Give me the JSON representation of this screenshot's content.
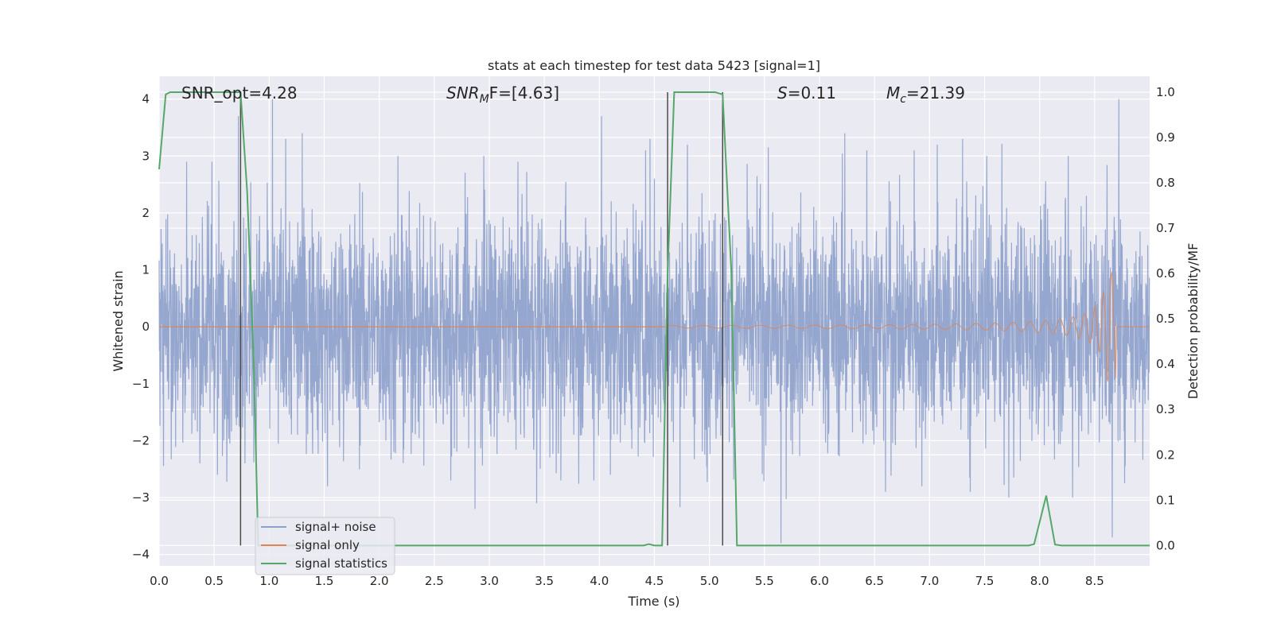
{
  "chart_data": {
    "type": "line",
    "title": "stats at each timestep for test data 5423 [signal=1]",
    "xlabel": "Time (s)",
    "ylabel_left": "Whitened strain",
    "ylabel_right": "Detection probability/MF",
    "xlim": [
      0.0,
      9.0
    ],
    "ylim_left": [
      -4.2,
      4.4
    ],
    "ylim_right": [
      -0.045,
      1.035
    ],
    "x_ticks": [
      "0.0",
      "0.5",
      "1.0",
      "1.5",
      "2.0",
      "2.5",
      "3.0",
      "3.5",
      "4.0",
      "4.5",
      "5.0",
      "5.5",
      "6.0",
      "6.5",
      "7.0",
      "7.5",
      "8.0",
      "8.5"
    ],
    "y_left_ticks": [
      "4",
      "3",
      "2",
      "1",
      "0",
      "−1",
      "−2",
      "−3",
      "−4"
    ],
    "y_right_ticks": [
      "1.0",
      "0.9",
      "0.8",
      "0.7",
      "0.6",
      "0.5",
      "0.4",
      "0.3",
      "0.2",
      "0.1",
      "0.0"
    ],
    "grid": true,
    "legend_location": "lower-left",
    "annotations": {
      "snr_opt": "SNR_opt=4.28",
      "snr_mf_prefix": "SNR",
      "snr_mf_sub": "M",
      "snr_mf_suffix": "F=[4.63]",
      "s_var": "S",
      "s_val": "=0.11",
      "mc_var": "M",
      "mc_sub": "c",
      "mc_val": "=21.39"
    },
    "colors": {
      "signal_noise": "#8da0cb",
      "signal_only": "#dd8452",
      "signal_statistics": "#55a868",
      "vlines": "#4c4c4c",
      "axes_bg": "#eaeaf2",
      "grid": "#ffffff"
    },
    "series": [
      {
        "name": "signal+ noise",
        "axis": "left",
        "description_values": "whitened strain noise, approx N(0,1), range -3.8 to 4.0",
        "spikes_high": [
          [
            0.25,
            2.9
          ],
          [
            0.48,
            2.9
          ],
          [
            0.72,
            3.7
          ],
          [
            1.03,
            4.0
          ],
          [
            1.15,
            3.3
          ],
          [
            1.3,
            3.4
          ],
          [
            2.17,
            3.0
          ],
          [
            2.95,
            3.0
          ],
          [
            3.26,
            2.9
          ],
          [
            4.02,
            3.7
          ],
          [
            4.42,
            3.1
          ],
          [
            4.46,
            3.3
          ],
          [
            4.8,
            3.2
          ],
          [
            6.23,
            3.4
          ],
          [
            6.43,
            3.1
          ],
          [
            6.86,
            3.1
          ],
          [
            7.07,
            3.2
          ],
          [
            7.3,
            3.3
          ],
          [
            7.52,
            3.0
          ],
          [
            8.26,
            3.0
          ],
          [
            8.72,
            4.0
          ]
        ],
        "spikes_low": [
          [
            0.37,
            -2.4
          ],
          [
            0.53,
            -2.6
          ],
          [
            0.78,
            -2.4
          ],
          [
            1.53,
            -2.8
          ],
          [
            2.65,
            -2.7
          ],
          [
            2.87,
            -3.2
          ],
          [
            3.43,
            -3.1
          ],
          [
            3.65,
            -2.7
          ],
          [
            3.95,
            -2.7
          ],
          [
            4.1,
            -2.6
          ],
          [
            5.65,
            -3.8
          ],
          [
            6.6,
            -2.9
          ],
          [
            6.93,
            -2.8
          ],
          [
            7.37,
            -2.9
          ],
          [
            7.72,
            -3.0
          ],
          [
            8.3,
            -3.0
          ],
          [
            8.66,
            -3.7
          ]
        ]
      },
      {
        "name": "signal only",
        "axis": "left",
        "chirp": {
          "t_start": 4.6,
          "t_merger": 8.67,
          "amp_start": 0.02,
          "amp_peak": 0.95,
          "f_start": 30,
          "f_end": 110
        }
      },
      {
        "name": "signal statistics",
        "axis": "right",
        "x": [
          0.0,
          0.06,
          0.1,
          0.2,
          0.6,
          0.74,
          0.8,
          0.86,
          0.9,
          1.0,
          4.4,
          4.45,
          4.5,
          4.57,
          4.62,
          4.68,
          5.05,
          5.12,
          5.2,
          5.25,
          5.3,
          6.0,
          7.9,
          7.95,
          8.06,
          8.14,
          8.2,
          9.0
        ],
        "y": [
          0.83,
          0.995,
          1.0,
          1.0,
          1.0,
          1.0,
          0.78,
          0.4,
          0.0,
          0.0,
          0.0,
          0.003,
          0.0,
          0.0,
          0.6,
          1.0,
          1.0,
          0.995,
          0.6,
          0.0,
          0.0,
          0.0,
          0.0,
          0.003,
          0.11,
          0.002,
          0.0,
          0.0
        ]
      }
    ],
    "vertical_lines_x": [
      0.74,
      4.62,
      5.12
    ]
  }
}
